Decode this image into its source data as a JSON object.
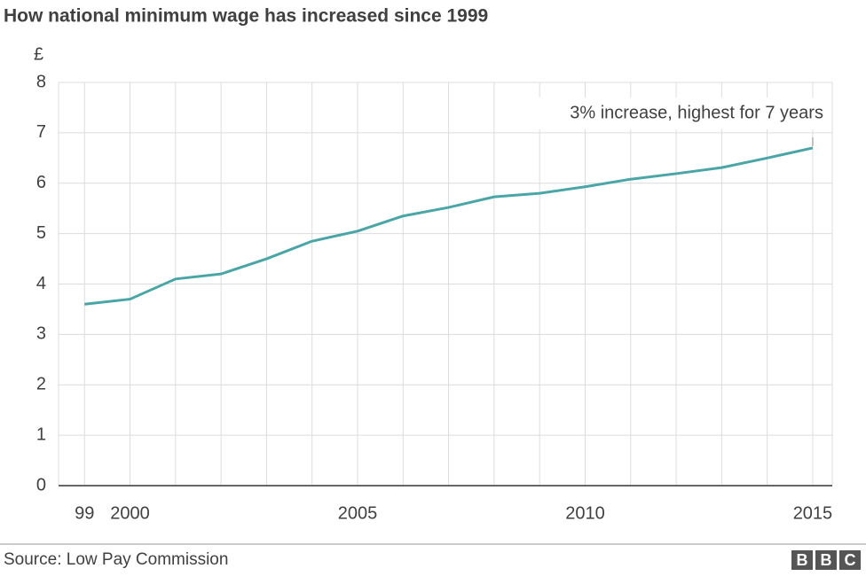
{
  "chart_data": {
    "type": "line",
    "title": "How national minimum wage has increased since 1999",
    "y_label": "£",
    "x": [
      1999,
      2000,
      2001,
      2002,
      2003,
      2004,
      2005,
      2006,
      2007,
      2008,
      2009,
      2010,
      2011,
      2012,
      2013,
      2014,
      2015
    ],
    "series": [
      {
        "name": "National minimum wage",
        "color": "#4aa5a7",
        "values": [
          3.6,
          3.7,
          4.1,
          4.2,
          4.5,
          4.85,
          5.05,
          5.35,
          5.52,
          5.73,
          5.8,
          5.93,
          6.08,
          6.19,
          6.31,
          6.5,
          6.7
        ]
      }
    ],
    "xlim": [
      1998.43,
      2015.43
    ],
    "xticks": [
      {
        "value": 1999,
        "label": "99"
      },
      2000,
      2005,
      2010,
      2015
    ],
    "ylim": [
      0,
      8
    ],
    "yticks": [
      0,
      1,
      2,
      3,
      4,
      5,
      6,
      7,
      8
    ],
    "grid": true,
    "annotation": {
      "text": "3% increase, highest for 7 years",
      "x": 2015,
      "y": 6.7
    },
    "source": "Source: Low Pay Commission",
    "logo": "BBC"
  }
}
